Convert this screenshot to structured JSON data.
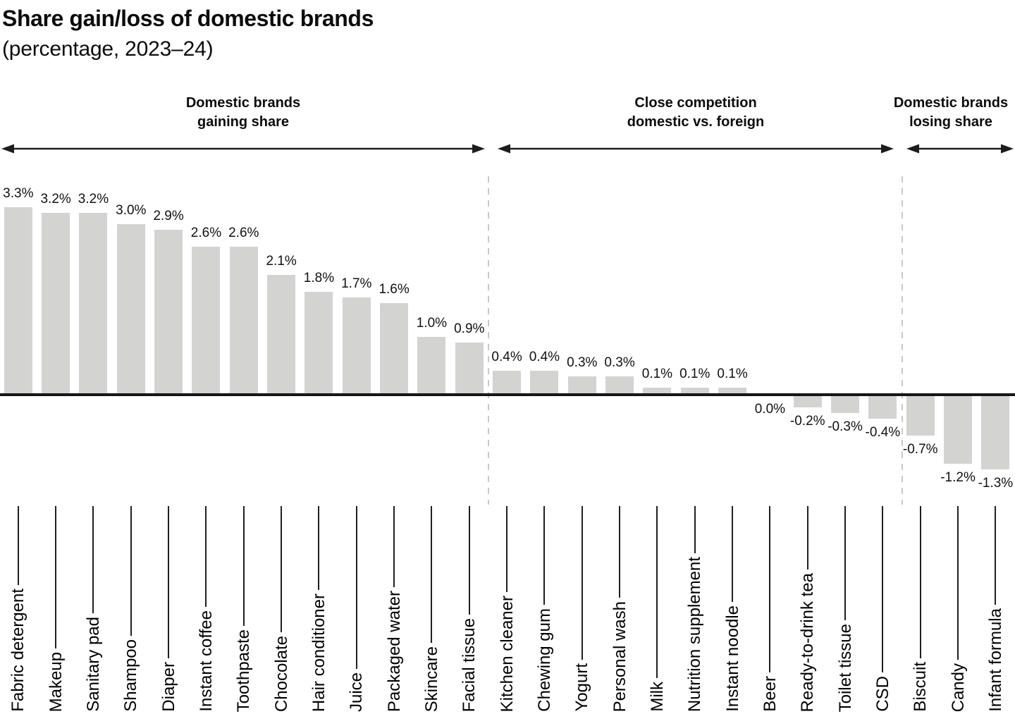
{
  "header": {
    "title": "Share gain/loss of domestic brands",
    "subtitle": "(percentage, 2023–24)"
  },
  "sections": [
    {
      "line1": "Domestic brands",
      "line2": "gaining share"
    },
    {
      "line1": "Close competition",
      "line2": "domestic vs. foreign"
    },
    {
      "line1": "Domestic brands",
      "line2": "losing share"
    }
  ],
  "colors": {
    "bar": "#d3d3d2",
    "baseline": "#161616",
    "separator": "#c9c9c9",
    "leader_line": "#1f1f1f",
    "text": "#000000"
  },
  "chart_data": {
    "type": "bar",
    "title": "Share gain/loss of domestic brands",
    "subtitle": "(percentage, 2023–24)",
    "unit": "percent",
    "grid": false,
    "legend": false,
    "ylim": [
      -1.5,
      3.5
    ],
    "categories": [
      "Fabric detergent",
      "Makeup",
      "Sanitary pad",
      "Shampoo",
      "Diaper",
      "Instant coffee",
      "Toothpaste",
      "Chocolate",
      "Hair conditioner",
      "Juice",
      "Packaged water",
      "Skincare",
      "Facial tissue",
      "Kitchen cleaner",
      "Chewing gum",
      "Yogurt",
      "Personal wash",
      "Milk",
      "Nutrition supplement",
      "Instant noodle",
      "Beer",
      "Ready-to-drink tea",
      "Toilet tissue",
      "CSD",
      "Biscuit",
      "Candy",
      "Infant formula"
    ],
    "values": [
      3.3,
      3.2,
      3.2,
      3.0,
      2.9,
      2.6,
      2.6,
      2.1,
      1.8,
      1.7,
      1.6,
      1.0,
      0.9,
      0.4,
      0.4,
      0.3,
      0.3,
      0.1,
      0.1,
      0.1,
      0.0,
      -0.2,
      -0.3,
      -0.4,
      -0.7,
      -1.2,
      -1.3
    ],
    "value_labels": [
      "3.3%",
      "3.2%",
      "3.2%",
      "3.0%",
      "2.9%",
      "2.6%",
      "2.6%",
      "2.1%",
      "1.8%",
      "1.7%",
      "1.6%",
      "1.0%",
      "0.9%",
      "0.4%",
      "0.4%",
      "0.3%",
      "0.3%",
      "0.1%",
      "0.1%",
      "0.1%",
      "0.0%",
      "-0.2%",
      "-0.3%",
      "-0.4%",
      "-0.7%",
      "-1.2%",
      "-1.3%"
    ],
    "groups": [
      {
        "label": "Domestic brands gaining share",
        "from": "Fabric detergent",
        "to": "Facial tissue"
      },
      {
        "label": "Close competition domestic vs. foreign",
        "from": "Kitchen cleaner",
        "to": "CSD"
      },
      {
        "label": "Domestic brands losing share",
        "from": "Biscuit",
        "to": "Infant formula"
      }
    ]
  }
}
